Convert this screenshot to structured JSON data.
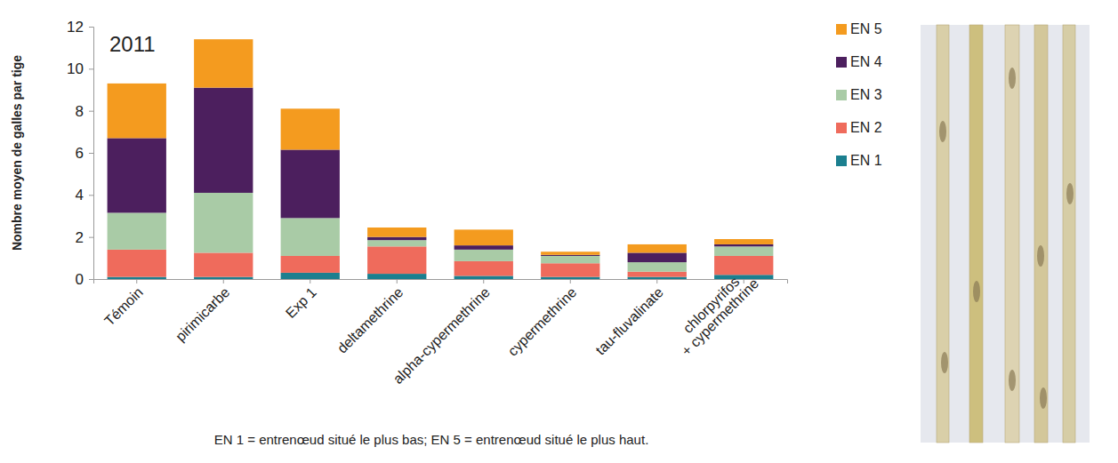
{
  "chart_data": {
    "type": "bar",
    "title": "2011",
    "y_label": "Nombre moyen de galles par tige",
    "annotations": [
      "EN 1 = entrenœud situé le plus bas; EN 5 = entrenœud situé le plus haut."
    ],
    "categories": [
      "Témoin",
      "pirimicarbe",
      "Exp 1",
      "deltamethrine",
      "alpha-cypermethrine",
      "cypermethrine",
      "tau-fluvalinate",
      "chlorpyrifos + cypermethrine"
    ],
    "series": [
      {
        "name": "EN 1",
        "color": "#1b7f8f",
        "values": [
          0.1,
          0.1,
          0.3,
          0.25,
          0.15,
          0.1,
          0.1,
          0.2
        ]
      },
      {
        "name": "EN 2",
        "color": "#ef6b5c",
        "values": [
          1.3,
          1.15,
          0.8,
          1.3,
          0.7,
          0.65,
          0.25,
          0.9
        ]
      },
      {
        "name": "EN 3",
        "color": "#a9cba6",
        "values": [
          1.75,
          2.85,
          1.8,
          0.3,
          0.55,
          0.35,
          0.45,
          0.45
        ]
      },
      {
        "name": "EN 4",
        "color": "#4c1f5e",
        "values": [
          3.55,
          5.0,
          3.25,
          0.15,
          0.2,
          0.05,
          0.45,
          0.1
        ]
      },
      {
        "name": "EN 5",
        "color": "#f49b1f",
        "values": [
          2.6,
          2.3,
          1.95,
          0.45,
          0.75,
          0.15,
          0.4,
          0.25
        ]
      }
    ],
    "stacked": true,
    "ylim": [
      0,
      12
    ],
    "yticks": [
      0,
      2,
      4,
      6,
      8,
      10,
      12
    ],
    "grid": false,
    "legend": "right"
  }
}
